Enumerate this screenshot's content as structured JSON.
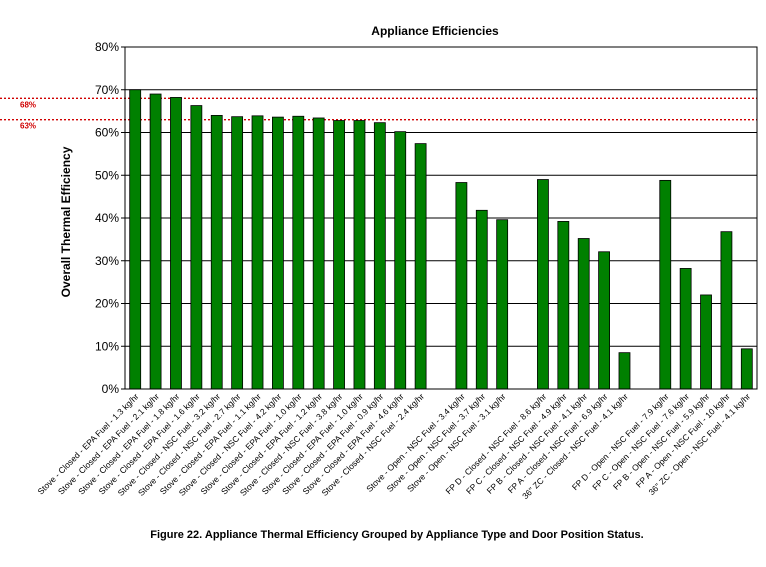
{
  "chart_data": {
    "type": "bar",
    "title": "Appliance Efficiencies",
    "ylabel": "Overall Thermal Efficiency",
    "xlabel": "",
    "ylim": [
      0,
      80
    ],
    "yticks": [
      "0%",
      "10%",
      "20%",
      "30%",
      "40%",
      "50%",
      "60%",
      "70%",
      "80%"
    ],
    "grid": true,
    "bar_color": "#008000",
    "reference_lines": [
      {
        "value": 68,
        "label": "68%",
        "color": "#d00000",
        "style": "dotted"
      },
      {
        "value": 63,
        "label": "63%",
        "color": "#d00000",
        "style": "dotted"
      }
    ],
    "categories": [
      "Stove - Closed - EPA Fuel - 1.3 kg/hr",
      "Stove - Closed - EPA Fuel - 2.1 kg/hr",
      "Stove - Closed - EPA Fuel - 1.8 kg/hr",
      "Stove - Closed - EPA Fuel - 1.6 kg/hr",
      "Stove - Closed - NSC Fuel - 3.2 kg/hr",
      "Stove - Closed - NSC Fuel - 2.7 kg/hr",
      "Stove - Closed - EPA Fuel - 1.1 kg/hr",
      "Stove - Closed - NSC Fuel - 4.2 kg/hr",
      "Stove - Closed - EPA Fuel - 1.0 kg/hr",
      "Stove - Closed - EPA Fuel - 1.2 kg/hr",
      "Stove - Closed - NSC Fuel - 3.8 kg/hr",
      "Stove - Closed - EPA Fuel - 1.0 kg/hr",
      "Stove - Closed - EPA Fuel - 0.9 kg/hr",
      "Stove - Closed - EPA Fuel - 4.6 kg/hr",
      "Stove - Closed - NSC Fuel - 2.4 kg/hr",
      "",
      "Stove - Open - NSC Fuel - 3.4 kg/hr",
      "Stove - Open - NSC Fuel - 3.7 kg/hr",
      "Stove - Open - NSC Fuel - 3.1 kg/hr",
      "",
      "FP D - Closed - NSC Fuel - 8.6 kg/hr",
      "FP C - Closed - NSC Fuel - 4.9 kg/hr",
      "FP B - Closed - NSC Fuel - 4.1 kg/hr",
      "FP A - Closed - NSC Fuel - 6.9 kg/hr",
      "36\" ZC - Closed - NSC Fuel - 4.1 kg/hr",
      "",
      "FP D - Open - NSC Fuel - 7.9 kg/hr",
      "FP C - Open - NSC Fuel - 7.6 kg/hr",
      "FP B - Open - NSC Fuel - 5.9 kg/hr",
      "FP A - Open - NSC Fuel - 10 kg/hr",
      "36\" ZC - Open - NSC Fuel - 4.1 kg/hr"
    ],
    "values": [
      70.0,
      69.0,
      68.2,
      66.3,
      64.0,
      63.7,
      63.9,
      63.6,
      63.8,
      63.4,
      62.8,
      62.8,
      62.3,
      60.2,
      57.4,
      null,
      48.3,
      41.8,
      39.6,
      null,
      49.0,
      39.2,
      35.2,
      32.1,
      8.5,
      null,
      48.8,
      28.2,
      22.0,
      36.8,
      9.4
    ]
  },
  "caption": "Figure 22.  Appliance Thermal Efficiency Grouped by Appliance Type and Door Position Status."
}
